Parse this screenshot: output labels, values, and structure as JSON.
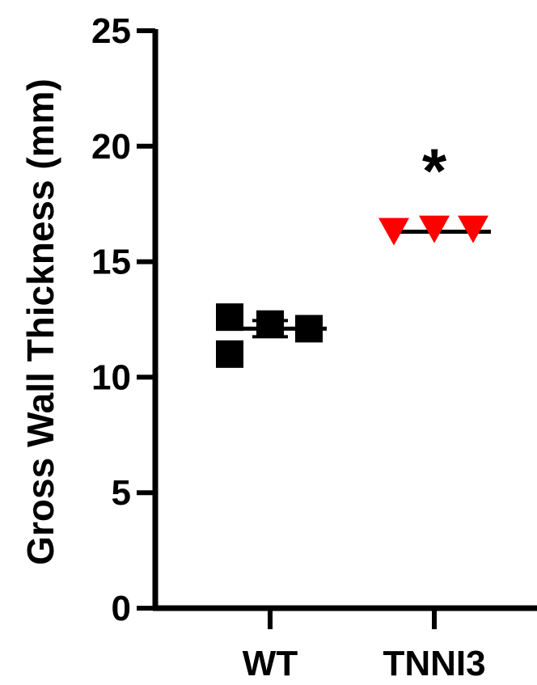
{
  "chart_data": {
    "type": "scatter",
    "ylabel": "Gross Wall Thickness (mm)",
    "ylim": [
      0,
      25
    ],
    "yticks": [
      "0",
      "5",
      "10",
      "15",
      "20",
      "25"
    ],
    "categories": [
      "WT",
      "TNNI3"
    ],
    "grid": false,
    "legend": "none",
    "series": [
      {
        "category": "WT",
        "marker": "square",
        "color": "#000000",
        "points": [
          {
            "x": "WT",
            "y": 12.6
          },
          {
            "x": "WT",
            "y": 11.0
          },
          {
            "x": "WT",
            "y": 12.3
          },
          {
            "x": "WT",
            "y": 12.1
          }
        ],
        "mean": 12.1,
        "error": 0.35
      },
      {
        "category": "TNNI3",
        "marker": "triangle-down",
        "color": "#ff0000",
        "points": [
          {
            "x": "TNNI3",
            "y": 16.3
          },
          {
            "x": "TNNI3",
            "y": 16.4
          },
          {
            "x": "TNNI3",
            "y": 16.4
          }
        ],
        "mean": 16.3,
        "error": 0.03
      }
    ],
    "annotations": [
      {
        "text": "*",
        "category": "TNNI3",
        "y": 19.6
      }
    ]
  }
}
